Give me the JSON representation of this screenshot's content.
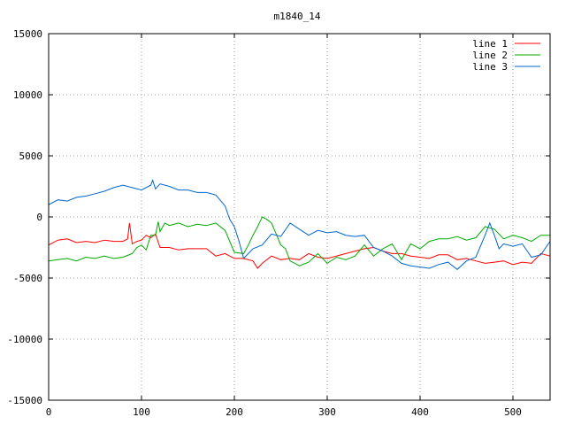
{
  "chart_data": {
    "type": "line",
    "title": "m1840_14",
    "xlabel": "",
    "ylabel": "",
    "xlim": [
      0,
      540
    ],
    "ylim": [
      -15000,
      15000
    ],
    "grid": true,
    "legend_position": "top-right",
    "x_ticks": [
      0,
      100,
      200,
      300,
      400,
      500
    ],
    "y_ticks": [
      -15000,
      -10000,
      -5000,
      0,
      5000,
      10000,
      15000
    ],
    "x_tick_labels": [
      "0",
      "100",
      "200",
      "300",
      "400",
      "500"
    ],
    "y_tick_labels": [
      "-15000",
      "-10000",
      "-5000",
      "0",
      "5000",
      "10000",
      "15000"
    ],
    "series": [
      {
        "name": "line 1",
        "color": "#ff0000",
        "x": [
          0,
          10,
          20,
          30,
          40,
          50,
          60,
          70,
          80,
          85,
          87,
          90,
          95,
          100,
          105,
          110,
          115,
          120,
          130,
          140,
          150,
          160,
          170,
          180,
          190,
          200,
          210,
          220,
          225,
          230,
          240,
          250,
          260,
          270,
          280,
          290,
          300,
          310,
          320,
          330,
          340,
          350,
          360,
          370,
          380,
          390,
          400,
          410,
          420,
          430,
          440,
          450,
          460,
          470,
          480,
          490,
          500,
          510,
          520,
          530,
          540
        ],
        "y": [
          -2300,
          -1900,
          -1800,
          -2100,
          -2000,
          -2100,
          -1900,
          -2000,
          -2000,
          -1800,
          -500,
          -2200,
          -2000,
          -1900,
          -1500,
          -1700,
          -1400,
          -2500,
          -2500,
          -2700,
          -2600,
          -2600,
          -2600,
          -3200,
          -3000,
          -3400,
          -3400,
          -3600,
          -4200,
          -3800,
          -3200,
          -3500,
          -3400,
          -3500,
          -3000,
          -3300,
          -3400,
          -3200,
          -3000,
          -2800,
          -2600,
          -2500,
          -2800,
          -3000,
          -3000,
          -3200,
          -3300,
          -3400,
          -3100,
          -3100,
          -3500,
          -3400,
          -3600,
          -3800,
          -3700,
          -3600,
          -3900,
          -3700,
          -3800,
          -3000,
          -3200
        ]
      },
      {
        "name": "line 2",
        "color": "#00aa00",
        "x": [
          0,
          10,
          20,
          30,
          40,
          50,
          60,
          70,
          80,
          90,
          95,
          100,
          105,
          110,
          115,
          118,
          120,
          125,
          130,
          140,
          150,
          160,
          170,
          180,
          190,
          200,
          210,
          215,
          220,
          225,
          230,
          235,
          240,
          245,
          250,
          255,
          260,
          270,
          280,
          290,
          300,
          310,
          320,
          330,
          340,
          350,
          360,
          370,
          380,
          390,
          400,
          410,
          420,
          430,
          440,
          450,
          460,
          470,
          480,
          490,
          500,
          510,
          520,
          530,
          540
        ],
        "y": [
          -3600,
          -3500,
          -3400,
          -3600,
          -3300,
          -3400,
          -3200,
          -3400,
          -3300,
          -3000,
          -2500,
          -2300,
          -2700,
          -1500,
          -1500,
          -400,
          -1200,
          -500,
          -700,
          -500,
          -800,
          -600,
          -700,
          -500,
          -1100,
          -2900,
          -3000,
          -2300,
          -1500,
          -800,
          0,
          -200,
          -500,
          -1400,
          -2300,
          -2600,
          -3600,
          -4000,
          -3700,
          -3000,
          -3800,
          -3300,
          -3500,
          -3200,
          -2300,
          -3200,
          -2600,
          -2200,
          -3500,
          -2200,
          -2600,
          -2000,
          -1800,
          -1800,
          -1600,
          -1900,
          -1700,
          -800,
          -1000,
          -1800,
          -1500,
          -1700,
          -2000,
          -1500,
          -1500
        ]
      },
      {
        "name": "line 3",
        "color": "#0066cc",
        "x": [
          0,
          10,
          20,
          30,
          40,
          50,
          60,
          70,
          80,
          90,
          100,
          110,
          112,
          115,
          120,
          130,
          140,
          150,
          160,
          170,
          180,
          190,
          195,
          200,
          205,
          210,
          220,
          230,
          240,
          250,
          260,
          270,
          280,
          290,
          300,
          310,
          320,
          330,
          340,
          350,
          360,
          370,
          380,
          390,
          400,
          410,
          420,
          430,
          440,
          450,
          460,
          470,
          475,
          480,
          485,
          490,
          500,
          510,
          520,
          530,
          540
        ],
        "y": [
          1000,
          1400,
          1300,
          1600,
          1700,
          1900,
          2100,
          2400,
          2600,
          2400,
          2200,
          2600,
          3000,
          2300,
          2700,
          2500,
          2200,
          2200,
          2000,
          2000,
          1800,
          900,
          -200,
          -800,
          -2000,
          -3400,
          -2600,
          -2300,
          -1400,
          -1600,
          -500,
          -1000,
          -1500,
          -1100,
          -1300,
          -1200,
          -1500,
          -1600,
          -1500,
          -2500,
          -2800,
          -3200,
          -3800,
          -4000,
          -4100,
          -4200,
          -3900,
          -3700,
          -4300,
          -3600,
          -3300,
          -1500,
          -500,
          -1500,
          -2600,
          -2200,
          -2400,
          -2200,
          -3300,
          -3100,
          -2000
        ]
      }
    ]
  }
}
